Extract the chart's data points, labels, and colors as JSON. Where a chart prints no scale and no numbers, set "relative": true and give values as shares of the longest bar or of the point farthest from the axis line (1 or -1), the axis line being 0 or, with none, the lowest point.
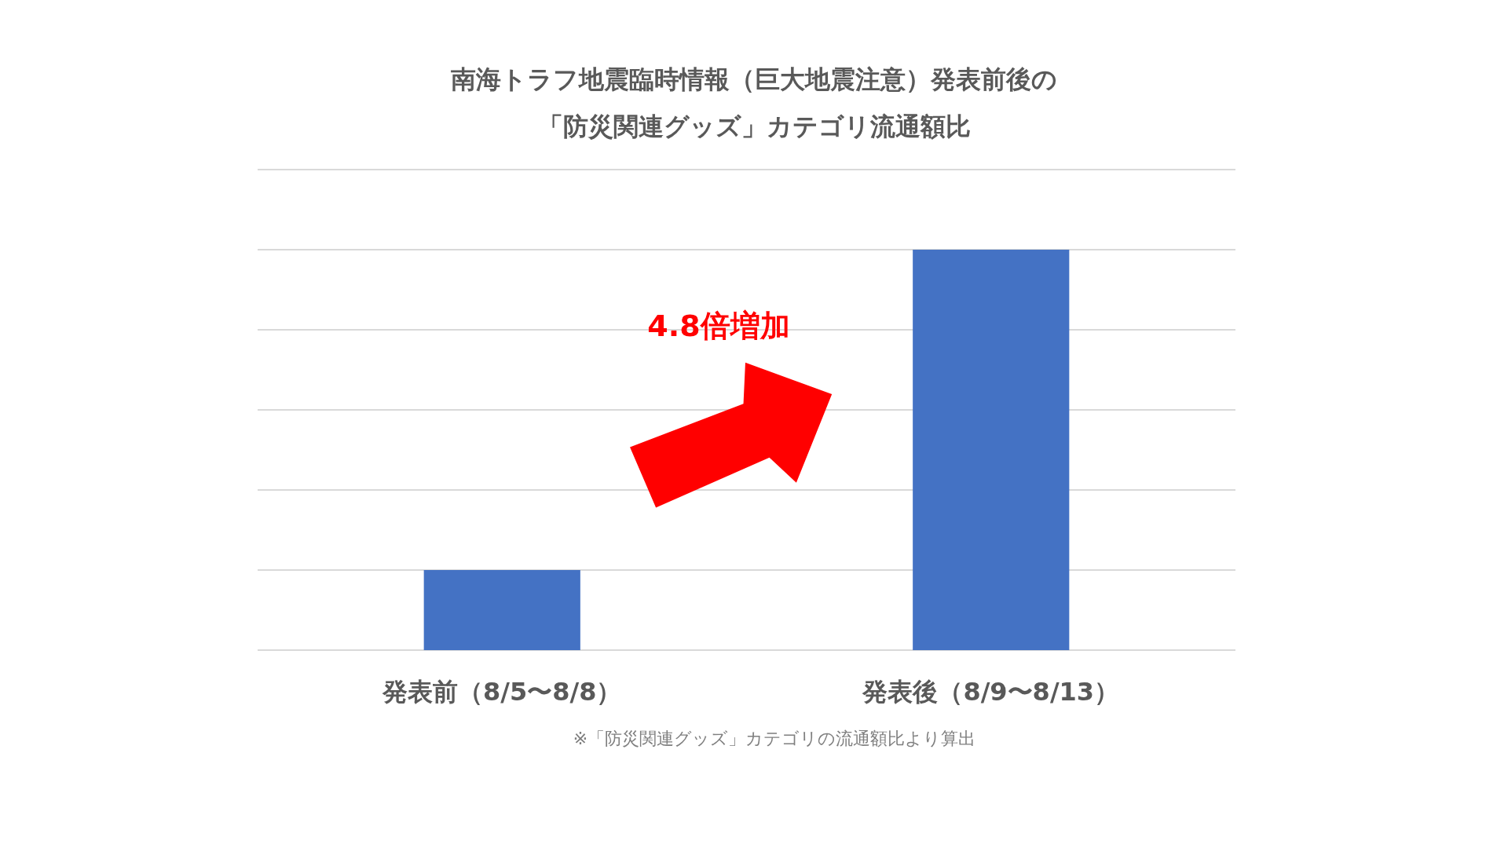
{
  "chart_data": {
    "type": "bar",
    "title": "南海トラフ地震臨時情報（巨大地震注意）発表前後の",
    "subtitle": "「防災関連グッズ」カテゴリ流通額比",
    "categories": [
      "発表前（8/5〜8/8）",
      "発表後（8/9〜8/13）"
    ],
    "values": [
      0.2,
      1
    ],
    "color": "#4472c4",
    "relative": true,
    "grid": "y",
    "annotations": [
      "4.8倍増加",
      "※「防災関連グッズ」カテゴリの流通額比より算出"
    ]
  }
}
